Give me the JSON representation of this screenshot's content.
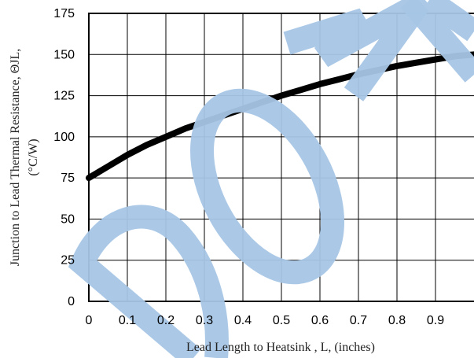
{
  "chart_data": {
    "type": "line",
    "title": "",
    "xlabel": "Lead Length to Heatsink , L, (inches)",
    "ylabel_line1": "Junction to Lead Thermal Resistance, ΘJL,",
    "ylabel_line2": "(°C/W)",
    "xlim": [
      0,
      1.0
    ],
    "ylim": [
      0,
      175
    ],
    "x_ticks": [
      "0",
      "0.1",
      "0.2",
      "0.3",
      "0.4",
      "0.5",
      "0.6",
      "0.7",
      "0.8",
      "0.9"
    ],
    "y_ticks": [
      "0",
      "25",
      "50",
      "75",
      "100",
      "125",
      "150",
      "175"
    ],
    "grid": true,
    "series": [
      {
        "x": [
          0,
          0.05,
          0.1,
          0.15,
          0.2,
          0.25,
          0.3,
          0.35,
          0.4,
          0.45,
          0.5,
          0.55,
          0.6,
          0.65,
          0.7,
          0.75,
          0.8,
          0.85,
          0.9,
          0.95,
          1.0
        ],
        "values": [
          75,
          82,
          89,
          95,
          100,
          105,
          109,
          113,
          117,
          121,
          125,
          128.5,
          132,
          135,
          138,
          140.5,
          143,
          145,
          147,
          149,
          150
        ]
      }
    ],
    "line_color": "#000000",
    "watermark": "DOWN",
    "watermark_color": "#a7c6e6"
  }
}
